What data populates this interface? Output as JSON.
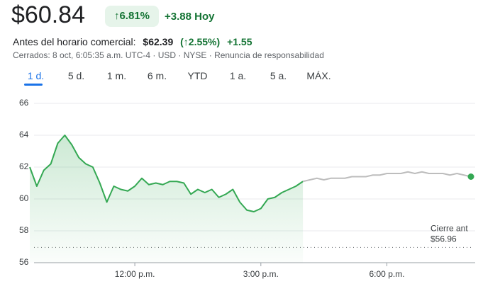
{
  "header": {
    "price": "$60.84",
    "change_pct": "↑6.81%",
    "change": "+3.88 Hoy",
    "premarket_label": "Antes del horario comercial:",
    "premarket_price": "$62.39",
    "premarket_pct": "(↑2.55%)",
    "premarket_change": "+1.55",
    "status": "Cerrados: 8 oct, 6:05:35 a.m. UTC-4 · USD · NYSE · Renuncia de responsabilidad",
    "tabs": [
      "1 d.",
      "5 d.",
      "1 m.",
      "6 m.",
      "YTD",
      "1 a.",
      "5 a.",
      "MÁX."
    ]
  },
  "chart_data": {
    "type": "line",
    "x": [
      570,
      580,
      590,
      600,
      610,
      620,
      630,
      640,
      650,
      660,
      670,
      680,
      690,
      700,
      710,
      720,
      730,
      740,
      750,
      760,
      770,
      780,
      790,
      800,
      810,
      820,
      830,
      840,
      850,
      860,
      870,
      880,
      890,
      900,
      910,
      920,
      930,
      940,
      950,
      960,
      970,
      980,
      990,
      1000,
      1010,
      1020,
      1030,
      1040,
      1050,
      1060,
      1070,
      1080,
      1090,
      1100,
      1110,
      1120,
      1130,
      1140,
      1150,
      1160,
      1170,
      1180,
      1190,
      1200
    ],
    "series": [
      {
        "color": "#34a853",
        "fill": true,
        "values": [
          62.0,
          60.8,
          61.8,
          62.2,
          63.5,
          64.0,
          63.4,
          62.6,
          62.2,
          62.0,
          61.0,
          59.8,
          60.8,
          60.6,
          60.5,
          60.8,
          61.3,
          60.9,
          61.0,
          60.9,
          61.1,
          61.1,
          61.0,
          60.3,
          60.6,
          60.4,
          60.6,
          60.1,
          60.3,
          60.6,
          59.8,
          59.3,
          59.2,
          59.4,
          60.0,
          60.1,
          60.4,
          60.6,
          60.8,
          61.1,
          null,
          null,
          null,
          null,
          null,
          null,
          null,
          null,
          null,
          null,
          null,
          null,
          null,
          null,
          null,
          null,
          null,
          null,
          null,
          null,
          null,
          null,
          null,
          null
        ]
      },
      {
        "color": "#bdbdbd",
        "end_dot": "#34a853",
        "values": [
          null,
          null,
          null,
          null,
          null,
          null,
          null,
          null,
          null,
          null,
          null,
          null,
          null,
          null,
          null,
          null,
          null,
          null,
          null,
          null,
          null,
          null,
          null,
          null,
          null,
          null,
          null,
          null,
          null,
          null,
          null,
          null,
          null,
          null,
          null,
          null,
          null,
          null,
          null,
          61.1,
          61.2,
          61.3,
          61.2,
          61.3,
          61.3,
          61.3,
          61.4,
          61.4,
          61.4,
          61.5,
          61.5,
          61.6,
          61.6,
          61.6,
          61.7,
          61.6,
          61.7,
          61.6,
          61.6,
          61.6,
          61.5,
          61.6,
          61.5,
          61.4
        ]
      }
    ],
    "xlim": [
      570,
      1200
    ],
    "xticks": [
      {
        "value": 720,
        "label": "12:00 p.m."
      },
      {
        "value": 900,
        "label": "3:00 p.m."
      },
      {
        "value": 1080,
        "label": "6:00 p.m."
      }
    ],
    "ylim": [
      56,
      66
    ],
    "yticks": [
      56,
      58,
      60,
      62,
      64,
      66
    ],
    "grid": true,
    "reference": {
      "label": "Cierre ant",
      "value": 56.96,
      "value_label": "$56.96"
    }
  }
}
